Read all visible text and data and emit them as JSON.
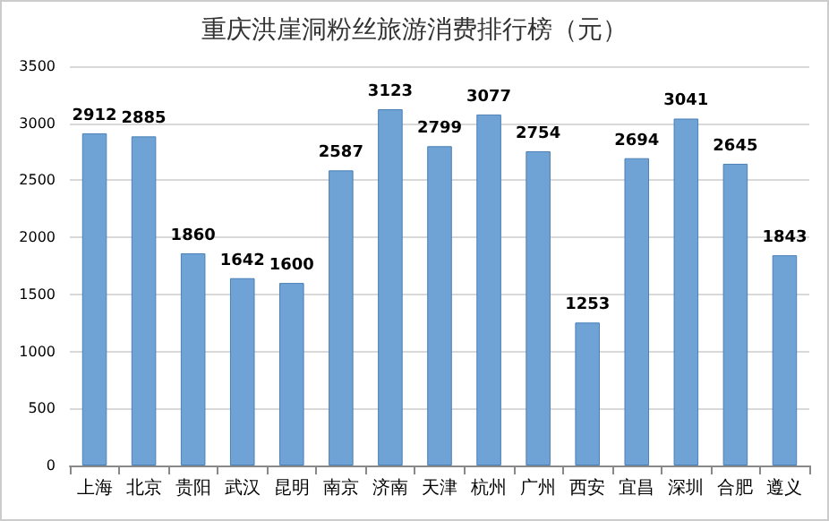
{
  "chart_data": {
    "type": "bar",
    "title": "重庆洪崖洞粉丝旅游消费排行榜（元）",
    "categories": [
      "上海",
      "北京",
      "贵阳",
      "武汉",
      "昆明",
      "南京",
      "济南",
      "天津",
      "杭州",
      "广州",
      "西安",
      "宜昌",
      "深圳",
      "合肥",
      "遵义"
    ],
    "values": [
      2912,
      2885,
      1860,
      1642,
      1600,
      2587,
      3123,
      2799,
      3077,
      2754,
      1253,
      2694,
      3041,
      2645,
      1843
    ],
    "color": "#6fa3d6",
    "ylim": [
      0,
      3500
    ],
    "yticks": [
      0,
      500,
      1000,
      1500,
      2000,
      2500,
      3000,
      3500
    ],
    "grid": "y",
    "data_labels": true
  }
}
